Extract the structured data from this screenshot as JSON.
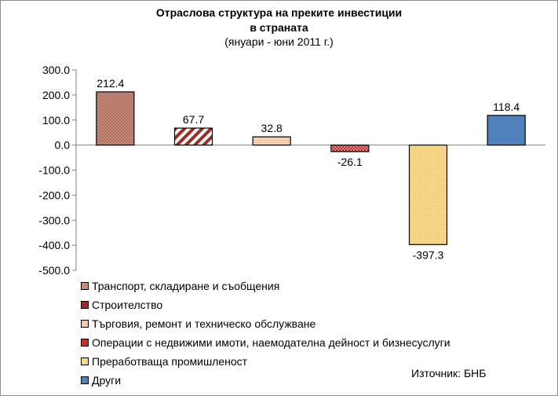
{
  "chart_data": {
    "type": "bar",
    "title_lines": [
      "Отраслова структура на преките инвестиции",
      "в страната",
      "(януари - юни 2011 г.)"
    ],
    "categories": [
      "Транспорт, складиране и съобщения",
      "Строителство",
      "Търговия, ремонт и техническо обслужване",
      "Операции с недвижими имоти, наемодателна дейност и бизнесуслуги",
      "Преработваща промишленост",
      "Други"
    ],
    "values": [
      212.4,
      67.7,
      32.8,
      -26.1,
      -397.3,
      118.4
    ],
    "data_labels": [
      "212.4",
      "67.7",
      "32.8",
      "-26.1",
      "-397.3",
      "118.4"
    ],
    "ylim": [
      -500,
      300
    ],
    "yticks": [
      300,
      200,
      100,
      0,
      -100,
      -200,
      -300,
      -400,
      -500
    ],
    "ytick_labels": [
      "300.0",
      "200.0",
      "100.0",
      "0.0",
      "-100.0",
      "-200.0",
      "-300.0",
      "-400.0",
      "-500.0"
    ],
    "xlabel": "",
    "ylabel": "",
    "grid": false,
    "legend_position": "bottom",
    "colors": [
      "#c98d7e",
      "#9e2a20",
      "#f6c9a6",
      "#c0302a",
      "#f8d88a",
      "#4f81bd"
    ],
    "patterns": [
      "dots",
      "diagonal",
      "fine",
      "dots",
      "fine",
      "solid"
    ]
  },
  "source_text": "Източник: БНБ"
}
